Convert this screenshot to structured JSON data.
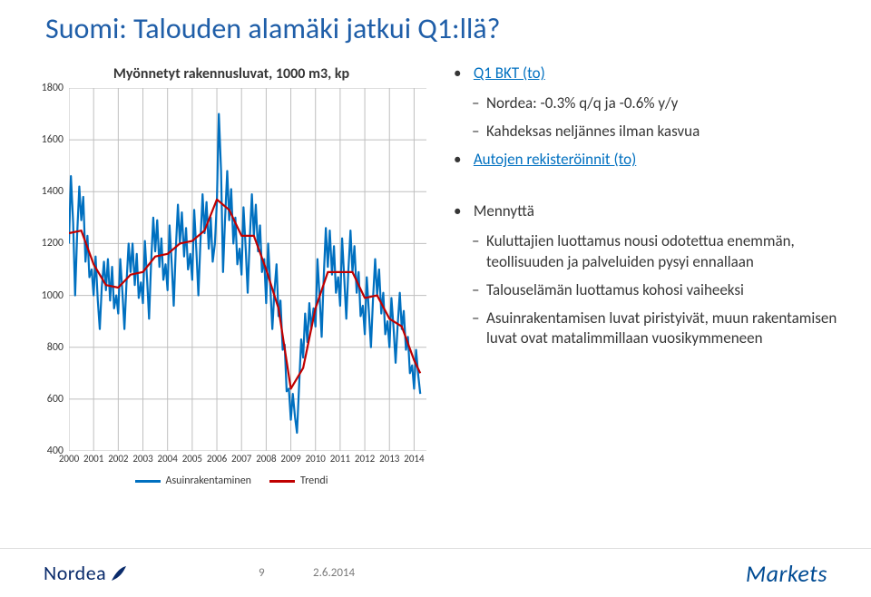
{
  "title": {
    "text": "Suomi: Talouden alamäki jatkui Q1:llä?",
    "color": "#1f5ea8",
    "fontsize": 32
  },
  "chart": {
    "type": "line",
    "title": "Myönnetyt rakennusluvat, 1000 m3, kp",
    "title_fontsize": 16,
    "label_fontsize": 12,
    "background_color": "#ffffff",
    "grid_color": "#bfbfbf",
    "ylim": [
      400,
      1800
    ],
    "ytick_step": 200,
    "yticks": [
      400,
      600,
      800,
      1000,
      1200,
      1400,
      1600,
      1800
    ],
    "x_years": [
      2000,
      2001,
      2002,
      2003,
      2004,
      2005,
      2006,
      2007,
      2008,
      2009,
      2010,
      2011,
      2012,
      2013,
      2014
    ],
    "xlim": [
      2000,
      2014.5
    ],
    "series": [
      {
        "name": "Asuinrakentaminen",
        "color": "#0070c0",
        "line_width": 2.2,
        "xy": [
          [
            2000.0,
            1200
          ],
          [
            2000.08,
            1460
          ],
          [
            2000.17,
            1280
          ],
          [
            2000.25,
            1000
          ],
          [
            2000.33,
            1230
          ],
          [
            2000.42,
            1420
          ],
          [
            2000.5,
            1290
          ],
          [
            2000.58,
            1380
          ],
          [
            2000.67,
            1130
          ],
          [
            2000.75,
            1230
          ],
          [
            2000.83,
            1070
          ],
          [
            2000.92,
            1100
          ],
          [
            2001.0,
            1000
          ],
          [
            2001.08,
            1150
          ],
          [
            2001.17,
            980
          ],
          [
            2001.25,
            870
          ],
          [
            2001.33,
            1030
          ],
          [
            2001.42,
            1130
          ],
          [
            2001.5,
            1020
          ],
          [
            2001.58,
            1140
          ],
          [
            2001.67,
            980
          ],
          [
            2001.75,
            1110
          ],
          [
            2001.83,
            950
          ],
          [
            2001.92,
            1000
          ],
          [
            2002.0,
            930
          ],
          [
            2002.08,
            1140
          ],
          [
            2002.17,
            1010
          ],
          [
            2002.25,
            870
          ],
          [
            2002.33,
            1040
          ],
          [
            2002.42,
            1200
          ],
          [
            2002.5,
            1090
          ],
          [
            2002.58,
            1200
          ],
          [
            2002.67,
            1040
          ],
          [
            2002.75,
            1160
          ],
          [
            2002.83,
            990
          ],
          [
            2002.92,
            1050
          ],
          [
            2003.0,
            970
          ],
          [
            2003.08,
            1210
          ],
          [
            2003.17,
            1060
          ],
          [
            2003.25,
            910
          ],
          [
            2003.33,
            1120
          ],
          [
            2003.42,
            1300
          ],
          [
            2003.5,
            1170
          ],
          [
            2003.58,
            1290
          ],
          [
            2003.67,
            1110
          ],
          [
            2003.75,
            1220
          ],
          [
            2003.83,
            1060
          ],
          [
            2003.92,
            1120
          ],
          [
            2004.0,
            1020
          ],
          [
            2004.08,
            1270
          ],
          [
            2004.17,
            1120
          ],
          [
            2004.25,
            960
          ],
          [
            2004.33,
            1170
          ],
          [
            2004.42,
            1350
          ],
          [
            2004.5,
            1200
          ],
          [
            2004.58,
            1320
          ],
          [
            2004.67,
            1150
          ],
          [
            2004.75,
            1260
          ],
          [
            2004.83,
            1100
          ],
          [
            2004.92,
            1160
          ],
          [
            2005.0,
            1060
          ],
          [
            2005.08,
            1330
          ],
          [
            2005.17,
            1170
          ],
          [
            2005.25,
            1000
          ],
          [
            2005.33,
            1200
          ],
          [
            2005.42,
            1390
          ],
          [
            2005.5,
            1240
          ],
          [
            2005.58,
            1360
          ],
          [
            2005.67,
            1180
          ],
          [
            2005.75,
            1300
          ],
          [
            2005.83,
            1130
          ],
          [
            2005.92,
            1200
          ],
          [
            2006.0,
            1360
          ],
          [
            2006.08,
            1700
          ],
          [
            2006.17,
            1480
          ],
          [
            2006.25,
            1090
          ],
          [
            2006.33,
            1290
          ],
          [
            2006.42,
            1480
          ],
          [
            2006.5,
            1290
          ],
          [
            2006.58,
            1410
          ],
          [
            2006.67,
            1200
          ],
          [
            2006.75,
            1300
          ],
          [
            2006.83,
            1120
          ],
          [
            2006.92,
            1180
          ],
          [
            2007.0,
            1080
          ],
          [
            2007.08,
            1340
          ],
          [
            2007.17,
            1180
          ],
          [
            2007.25,
            1010
          ],
          [
            2007.33,
            1210
          ],
          [
            2007.42,
            1390
          ],
          [
            2007.5,
            1230
          ],
          [
            2007.58,
            1350
          ],
          [
            2007.67,
            1170
          ],
          [
            2007.75,
            1270
          ],
          [
            2007.83,
            1090
          ],
          [
            2007.92,
            1140
          ],
          [
            2008.0,
            970
          ],
          [
            2008.08,
            1200
          ],
          [
            2008.17,
            1030
          ],
          [
            2008.25,
            870
          ],
          [
            2008.33,
            1010
          ],
          [
            2008.42,
            1120
          ],
          [
            2008.5,
            920
          ],
          [
            2008.58,
            980
          ],
          [
            2008.67,
            790
          ],
          [
            2008.75,
            810
          ],
          [
            2008.83,
            630
          ],
          [
            2008.92,
            640
          ],
          [
            2009.0,
            520
          ],
          [
            2009.08,
            620
          ],
          [
            2009.17,
            530
          ],
          [
            2009.25,
            470
          ],
          [
            2009.33,
            640
          ],
          [
            2009.42,
            830
          ],
          [
            2009.5,
            760
          ],
          [
            2009.58,
            930
          ],
          [
            2009.67,
            820
          ],
          [
            2009.75,
            970
          ],
          [
            2009.83,
            870
          ],
          [
            2009.92,
            950
          ],
          [
            2010.0,
            880
          ],
          [
            2010.08,
            1140
          ],
          [
            2010.17,
            990
          ],
          [
            2010.25,
            840
          ],
          [
            2010.33,
            1060
          ],
          [
            2010.42,
            1260
          ],
          [
            2010.5,
            1110
          ],
          [
            2010.58,
            1250
          ],
          [
            2010.67,
            1080
          ],
          [
            2010.75,
            1190
          ],
          [
            2010.83,
            1010
          ],
          [
            2010.92,
            1070
          ],
          [
            2011.0,
            960
          ],
          [
            2011.08,
            1220
          ],
          [
            2011.17,
            1060
          ],
          [
            2011.25,
            910
          ],
          [
            2011.33,
            1090
          ],
          [
            2011.42,
            1250
          ],
          [
            2011.5,
            1090
          ],
          [
            2011.58,
            1190
          ],
          [
            2011.67,
            1010
          ],
          [
            2011.75,
            1090
          ],
          [
            2011.83,
            920
          ],
          [
            2011.92,
            960
          ],
          [
            2012.0,
            850
          ],
          [
            2012.08,
            1070
          ],
          [
            2012.17,
            930
          ],
          [
            2012.25,
            800
          ],
          [
            2012.33,
            980
          ],
          [
            2012.42,
            1140
          ],
          [
            2012.5,
            1000
          ],
          [
            2012.58,
            1100
          ],
          [
            2012.67,
            930
          ],
          [
            2012.75,
            1010
          ],
          [
            2012.83,
            850
          ],
          [
            2012.92,
            900
          ],
          [
            2013.0,
            800
          ],
          [
            2013.08,
            990
          ],
          [
            2013.17,
            870
          ],
          [
            2013.25,
            740
          ],
          [
            2013.33,
            880
          ],
          [
            2013.42,
            1010
          ],
          [
            2013.5,
            870
          ],
          [
            2013.58,
            940
          ],
          [
            2013.67,
            790
          ],
          [
            2013.75,
            840
          ],
          [
            2013.83,
            700
          ],
          [
            2013.92,
            730
          ],
          [
            2014.0,
            640
          ],
          [
            2014.08,
            790
          ],
          [
            2014.17,
            690
          ],
          [
            2014.25,
            620
          ]
        ]
      },
      {
        "name": "Trendi",
        "color": "#c00000",
        "line_width": 2.2,
        "xy": [
          [
            2000.0,
            1240
          ],
          [
            2000.5,
            1250
          ],
          [
            2001.0,
            1120
          ],
          [
            2001.5,
            1040
          ],
          [
            2002.0,
            1030
          ],
          [
            2002.5,
            1080
          ],
          [
            2003.0,
            1090
          ],
          [
            2003.5,
            1150
          ],
          [
            2004.0,
            1160
          ],
          [
            2004.5,
            1200
          ],
          [
            2005.0,
            1210
          ],
          [
            2005.5,
            1250
          ],
          [
            2006.0,
            1370
          ],
          [
            2006.5,
            1330
          ],
          [
            2007.0,
            1230
          ],
          [
            2007.5,
            1230
          ],
          [
            2008.0,
            1100
          ],
          [
            2008.5,
            950
          ],
          [
            2009.0,
            640
          ],
          [
            2009.5,
            720
          ],
          [
            2010.0,
            950
          ],
          [
            2010.5,
            1090
          ],
          [
            2011.0,
            1090
          ],
          [
            2011.5,
            1090
          ],
          [
            2012.0,
            990
          ],
          [
            2012.5,
            1000
          ],
          [
            2013.0,
            910
          ],
          [
            2013.5,
            880
          ],
          [
            2014.0,
            750
          ],
          [
            2014.25,
            700
          ]
        ]
      }
    ],
    "legend_labels": [
      "Asuinrakentaminen",
      "Trendi"
    ]
  },
  "bullets": {
    "group1": {
      "heading": "Q1 BKT (to)",
      "heading_href": "#",
      "items": [
        "Nordea: -0.3% q/q ja -0.6% y/y",
        "Kahdeksas neljännes ilman kasvua"
      ],
      "trailing": "Autojen rekisteröinnit (to)",
      "trailing_href": "#"
    },
    "group2": {
      "heading": "Mennyttä",
      "items": [
        "Kuluttajien luottamus nousi odotettua enemmän, teollisuuden ja palveluiden pysyi ennallaan",
        "Talouselämän luottamus kohosi vaiheeksi",
        "Asuinrakentamisen luvat piristyivät, muun rakentamisen luvat ovat matalimmillaan vuosikymmeneen"
      ]
    }
  },
  "footer": {
    "page": "9",
    "date": "2.6.2014",
    "nordea_word": "Nordea",
    "nordea_color": "#0a2b6b",
    "markets_word": "Markets",
    "markets_color": "#004b93"
  }
}
